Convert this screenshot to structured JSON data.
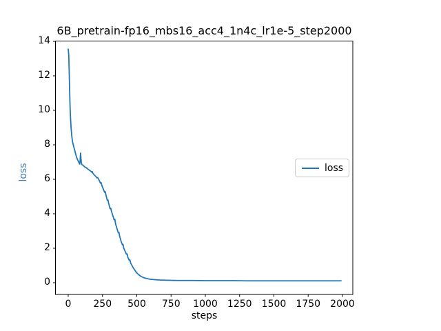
{
  "figure": {
    "background": "#ffffff",
    "spine_color": "#000000",
    "text_color": "#000000"
  },
  "chart_data": {
    "type": "line",
    "title": "6B_pretrain-fp16_mbs16_acc4_1n4c_lr1e-5_step2000",
    "xlabel": "steps",
    "ylabel": "loss",
    "ylabel_color": "#3d7ab5",
    "line_color": "#1f77b4",
    "xlim": [
      -100,
      2100
    ],
    "ylim": [
      -0.7,
      14.7
    ],
    "x_ticks": [
      0,
      250,
      500,
      750,
      1000,
      1250,
      1500,
      1750,
      2000
    ],
    "y_ticks": [
      0,
      2,
      4,
      6,
      8,
      10,
      12,
      14
    ],
    "grid": false,
    "legend": {
      "position": "center right",
      "entries": [
        {
          "label": "loss",
          "color": "#1f77b4"
        }
      ]
    },
    "series": [
      {
        "name": "loss",
        "points": [
          [
            0,
            13.55
          ],
          [
            4,
            13.2
          ],
          [
            7,
            12.3
          ],
          [
            10,
            11.3
          ],
          [
            13,
            10.3
          ],
          [
            16,
            9.7
          ],
          [
            20,
            9.1
          ],
          [
            25,
            8.6
          ],
          [
            30,
            8.25
          ],
          [
            35,
            8.05
          ],
          [
            40,
            7.9
          ],
          [
            45,
            7.75
          ],
          [
            50,
            7.6
          ],
          [
            55,
            7.45
          ],
          [
            60,
            7.3
          ],
          [
            65,
            7.2
          ],
          [
            70,
            7.1
          ],
          [
            75,
            7.02
          ],
          [
            80,
            6.95
          ],
          [
            84,
            6.88
          ],
          [
            87,
            7.1
          ],
          [
            90,
            7.52
          ],
          [
            93,
            7.2
          ],
          [
            96,
            6.95
          ],
          [
            100,
            6.85
          ],
          [
            110,
            6.8
          ],
          [
            120,
            6.72
          ],
          [
            130,
            6.68
          ],
          [
            140,
            6.62
          ],
          [
            150,
            6.55
          ],
          [
            160,
            6.5
          ],
          [
            170,
            6.42
          ],
          [
            175,
            6.45
          ],
          [
            180,
            6.35
          ],
          [
            190,
            6.25
          ],
          [
            200,
            6.18
          ],
          [
            210,
            6.08
          ],
          [
            215,
            6.1
          ],
          [
            225,
            5.95
          ],
          [
            235,
            5.78
          ],
          [
            240,
            5.8
          ],
          [
            245,
            5.65
          ],
          [
            255,
            5.45
          ],
          [
            265,
            5.25
          ],
          [
            270,
            5.28
          ],
          [
            275,
            5.1
          ],
          [
            285,
            4.78
          ],
          [
            290,
            4.8
          ],
          [
            295,
            4.6
          ],
          [
            305,
            4.3
          ],
          [
            310,
            4.32
          ],
          [
            315,
            4.15
          ],
          [
            325,
            3.9
          ],
          [
            335,
            3.65
          ],
          [
            340,
            3.68
          ],
          [
            345,
            3.42
          ],
          [
            355,
            3.15
          ],
          [
            365,
            2.9
          ],
          [
            370,
            2.92
          ],
          [
            375,
            2.7
          ],
          [
            385,
            2.42
          ],
          [
            395,
            2.2
          ],
          [
            400,
            2.22
          ],
          [
            405,
            2.0
          ],
          [
            415,
            1.82
          ],
          [
            425,
            1.65
          ],
          [
            430,
            1.67
          ],
          [
            435,
            1.48
          ],
          [
            445,
            1.3
          ],
          [
            450,
            1.32
          ],
          [
            455,
            1.15
          ],
          [
            465,
            1.0
          ],
          [
            475,
            0.85
          ],
          [
            485,
            0.74
          ],
          [
            495,
            0.62
          ],
          [
            505,
            0.53
          ],
          [
            515,
            0.46
          ],
          [
            530,
            0.37
          ],
          [
            545,
            0.31
          ],
          [
            560,
            0.27
          ],
          [
            580,
            0.23
          ],
          [
            600,
            0.2
          ],
          [
            630,
            0.18
          ],
          [
            660,
            0.16
          ],
          [
            700,
            0.15
          ],
          [
            750,
            0.14
          ],
          [
            800,
            0.13
          ],
          [
            900,
            0.13
          ],
          [
            1000,
            0.12
          ],
          [
            1100,
            0.12
          ],
          [
            1200,
            0.12
          ],
          [
            1300,
            0.11
          ],
          [
            1400,
            0.11
          ],
          [
            1500,
            0.11
          ],
          [
            1600,
            0.11
          ],
          [
            1700,
            0.11
          ],
          [
            1800,
            0.11
          ],
          [
            1900,
            0.11
          ],
          [
            1990,
            0.11
          ]
        ]
      }
    ]
  }
}
